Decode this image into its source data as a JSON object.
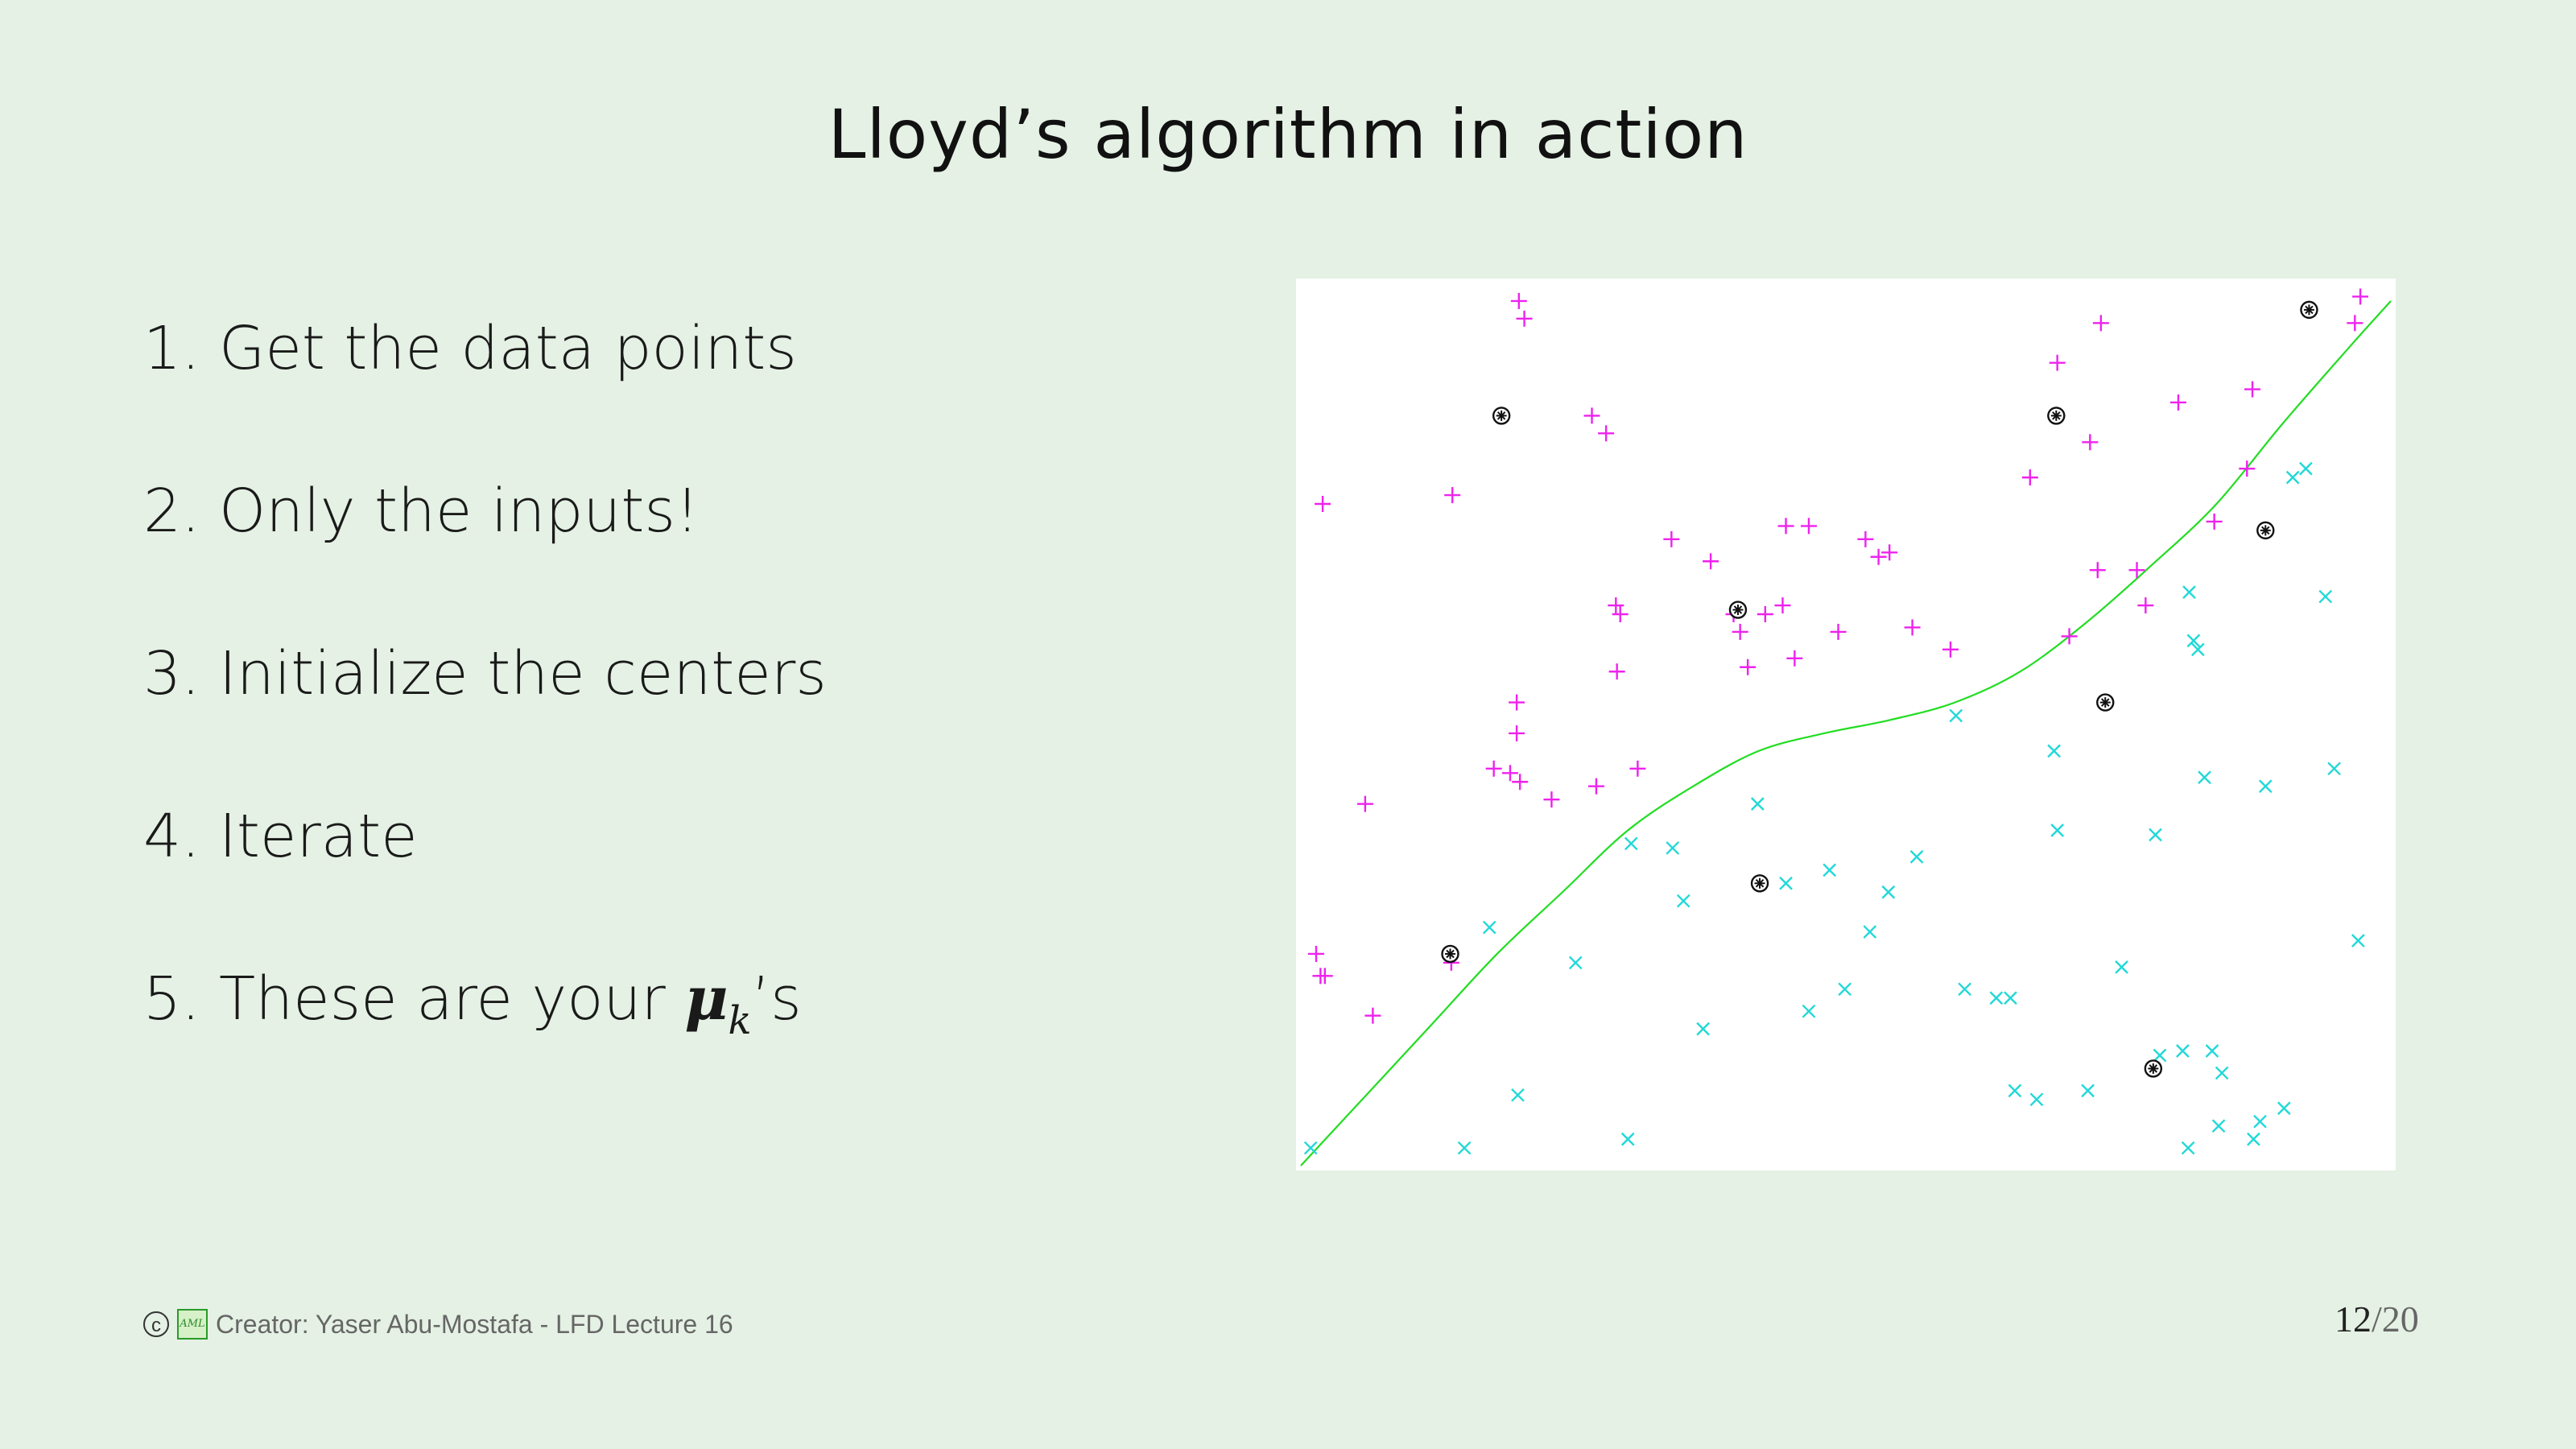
{
  "slide": {
    "title": "Lloyd’s algorithm in action",
    "steps": [
      {
        "num": "1.",
        "text": "Get the data points"
      },
      {
        "num": "2.",
        "text": "Only the inputs!"
      },
      {
        "num": "3.",
        "text": "Initialize the centers"
      },
      {
        "num": "4.",
        "text": "Iterate"
      },
      {
        "num": "5.",
        "text": "These are your ",
        "math": "μ",
        "sub": "k",
        "suffix": "’s"
      }
    ],
    "footer": {
      "copyright_symbol": "c",
      "logo": "AML",
      "creator": "Creator: Yaser Abu-Mostafa - LFD Lecture 16"
    },
    "page": {
      "current": "12",
      "separator": "/",
      "total": "20"
    }
  },
  "colors": {
    "background": "#e4f1e4",
    "positive": "#ee22ee",
    "negative": "#22d8d8",
    "boundary": "#22dd22",
    "center": "#111111"
  },
  "icons": {
    "positive_marker": "plus-marker-icon",
    "negative_marker": "cross-marker-icon",
    "center_marker": "circled-asterisk-icon"
  },
  "chart_data": {
    "type": "scatter",
    "xlim": [
      0,
      100
    ],
    "ylim": [
      0,
      100
    ],
    "grid": false,
    "legend": "none",
    "series": [
      {
        "class": "positive",
        "marker": "+",
        "points": [
          [
            20,
            98
          ],
          [
            20.5,
            96
          ],
          [
            2,
            75
          ],
          [
            13.9,
            76
          ],
          [
            26.7,
            85
          ],
          [
            28,
            83
          ],
          [
            34,
            71
          ],
          [
            37.6,
            68.5
          ],
          [
            44.5,
            72.5
          ],
          [
            46.6,
            72.5
          ],
          [
            51.8,
            71
          ],
          [
            53,
            69
          ],
          [
            54,
            69.5
          ],
          [
            29.3,
            62.5
          ],
          [
            28.9,
            63.5
          ],
          [
            39.7,
            62.5
          ],
          [
            42.6,
            62.5
          ],
          [
            44.2,
            63.5
          ],
          [
            40.3,
            60.5
          ],
          [
            49.3,
            60.5
          ],
          [
            56.1,
            61
          ],
          [
            59.6,
            58.5
          ],
          [
            41,
            56.5
          ],
          [
            45.3,
            57.5
          ],
          [
            29,
            56
          ],
          [
            19.8,
            52.5
          ],
          [
            19.8,
            49
          ],
          [
            17.7,
            45
          ],
          [
            19.2,
            44.5
          ],
          [
            20.1,
            43.5
          ],
          [
            23,
            41.5
          ],
          [
            27.1,
            43
          ],
          [
            30.9,
            45
          ],
          [
            5.9,
            41
          ],
          [
            1.4,
            24
          ],
          [
            1.8,
            21.5
          ],
          [
            2.2,
            21.5
          ],
          [
            6.6,
            17
          ],
          [
            13.8,
            23
          ],
          [
            66.9,
            78
          ],
          [
            69.4,
            91
          ],
          [
            73.4,
            95.5
          ],
          [
            72.4,
            82
          ],
          [
            73.1,
            67.5
          ],
          [
            76.7,
            67.5
          ],
          [
            77.5,
            63.5
          ],
          [
            70.5,
            60
          ],
          [
            80.5,
            86.5
          ],
          [
            87.3,
            88
          ],
          [
            86.8,
            79
          ],
          [
            83.8,
            73
          ],
          [
            97.2,
            98.5
          ],
          [
            96.7,
            95.5
          ]
        ]
      },
      {
        "class": "negative",
        "marker": "x",
        "points": [
          [
            0.9,
            2
          ],
          [
            15,
            2
          ],
          [
            30,
            3
          ],
          [
            19.9,
            8
          ],
          [
            25.2,
            23
          ],
          [
            17.3,
            27
          ],
          [
            30.3,
            36.5
          ],
          [
            34.1,
            36
          ],
          [
            35.1,
            30
          ],
          [
            36.9,
            15.5
          ],
          [
            41.9,
            41
          ],
          [
            44.5,
            32
          ],
          [
            46.6,
            17.5
          ],
          [
            49.9,
            20
          ],
          [
            48.5,
            33.5
          ],
          [
            52.2,
            26.5
          ],
          [
            53.9,
            31
          ],
          [
            56.5,
            35
          ],
          [
            60.9,
            20
          ],
          [
            63.8,
            19
          ],
          [
            65.1,
            19
          ],
          [
            60.1,
            51
          ],
          [
            65.5,
            8.5
          ],
          [
            67.5,
            7.5
          ],
          [
            72.2,
            8.5
          ],
          [
            69.1,
            47
          ],
          [
            69.4,
            38
          ],
          [
            78.4,
            37.5
          ],
          [
            75.3,
            22.5
          ],
          [
            78.8,
            12.5
          ],
          [
            80.9,
            13
          ],
          [
            81.4,
            2
          ],
          [
            82.3,
            58.5
          ],
          [
            81.5,
            65
          ],
          [
            81.9,
            59.5
          ],
          [
            82.9,
            44
          ],
          [
            84.5,
            10.5
          ],
          [
            83.6,
            13
          ],
          [
            84.2,
            4.5
          ],
          [
            87.4,
            3
          ],
          [
            88,
            5
          ],
          [
            88.5,
            43
          ],
          [
            90.2,
            6.5
          ],
          [
            91,
            78
          ],
          [
            92.2,
            79
          ],
          [
            94,
            64.5
          ],
          [
            94.8,
            45
          ],
          [
            97,
            25.5
          ]
        ]
      },
      {
        "class": "center",
        "marker": "circled-asterisk",
        "points": [
          [
            18.4,
            85
          ],
          [
            13.7,
            24
          ],
          [
            40.1,
            63
          ],
          [
            42.1,
            32
          ],
          [
            69.3,
            85
          ],
          [
            73.8,
            52.5
          ],
          [
            88.5,
            72
          ],
          [
            92.5,
            97
          ],
          [
            78.2,
            11
          ]
        ]
      }
    ],
    "boundary": {
      "class": "boundary",
      "type": "curve",
      "points": [
        [
          0,
          0
        ],
        [
          6,
          8
        ],
        [
          12,
          16
        ],
        [
          18,
          24
        ],
        [
          24,
          31
        ],
        [
          30,
          38
        ],
        [
          36,
          43
        ],
        [
          42,
          47
        ],
        [
          48,
          49
        ],
        [
          54,
          50.5
        ],
        [
          60,
          52.5
        ],
        [
          66,
          56
        ],
        [
          72,
          61.5
        ],
        [
          78,
          68
        ],
        [
          84,
          75
        ],
        [
          90,
          84
        ],
        [
          96,
          92.5
        ],
        [
          100,
          98
        ]
      ]
    }
  }
}
